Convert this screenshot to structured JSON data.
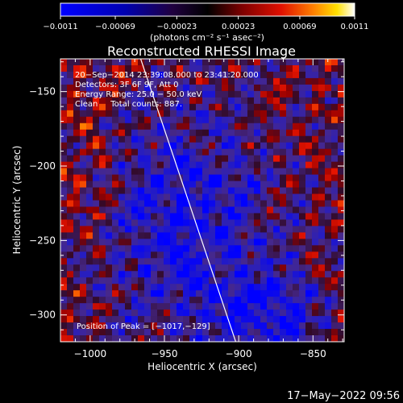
{
  "chart_data": {
    "type": "heatmap",
    "title": "Reconstructed RHESSI Image",
    "xlabel": "Heliocentric X (arcsec)",
    "ylabel": "Heliocentric Y (arcsec)",
    "xlim": [
      -1020,
      -829
    ],
    "ylim": [
      -318,
      -128
    ],
    "x_ticks": [
      -1000,
      -950,
      -900,
      -850
    ],
    "x_tick_labels": [
      "−1000",
      "−950",
      "−900",
      "−850"
    ],
    "y_ticks": [
      -150,
      -200,
      -250,
      -300
    ],
    "y_tick_labels": [
      "−150",
      "−200",
      "−250",
      "−300"
    ],
    "colorbar": {
      "range": [
        -0.0011,
        0.0011
      ],
      "ticks": [
        -0.0011,
        -0.00069,
        -0.00023,
        0.00023,
        0.00069,
        0.0011
      ],
      "tick_labels": [
        "−0.0011",
        "−0.00069",
        "−0.00023",
        "0.00023",
        "0.00069",
        "0.0011"
      ],
      "units": "(photons cm⁻² s⁻¹ asec⁻²)"
    },
    "annotations": [
      "20−Sep−2014 23:39:08.000 to 23:41:20.000",
      "Detectors: 3F 6F 9F, Att 0",
      "Energy Range: 25.0 − 50.0 keV",
      "Clean     Total counts: 887."
    ],
    "peak_label": "Position of Peak = [−1017,−129]",
    "limb_line": [
      [
        -966,
        -128
      ],
      [
        -902,
        -318
      ]
    ],
    "timestamp": "17−May−2022 09:56"
  }
}
